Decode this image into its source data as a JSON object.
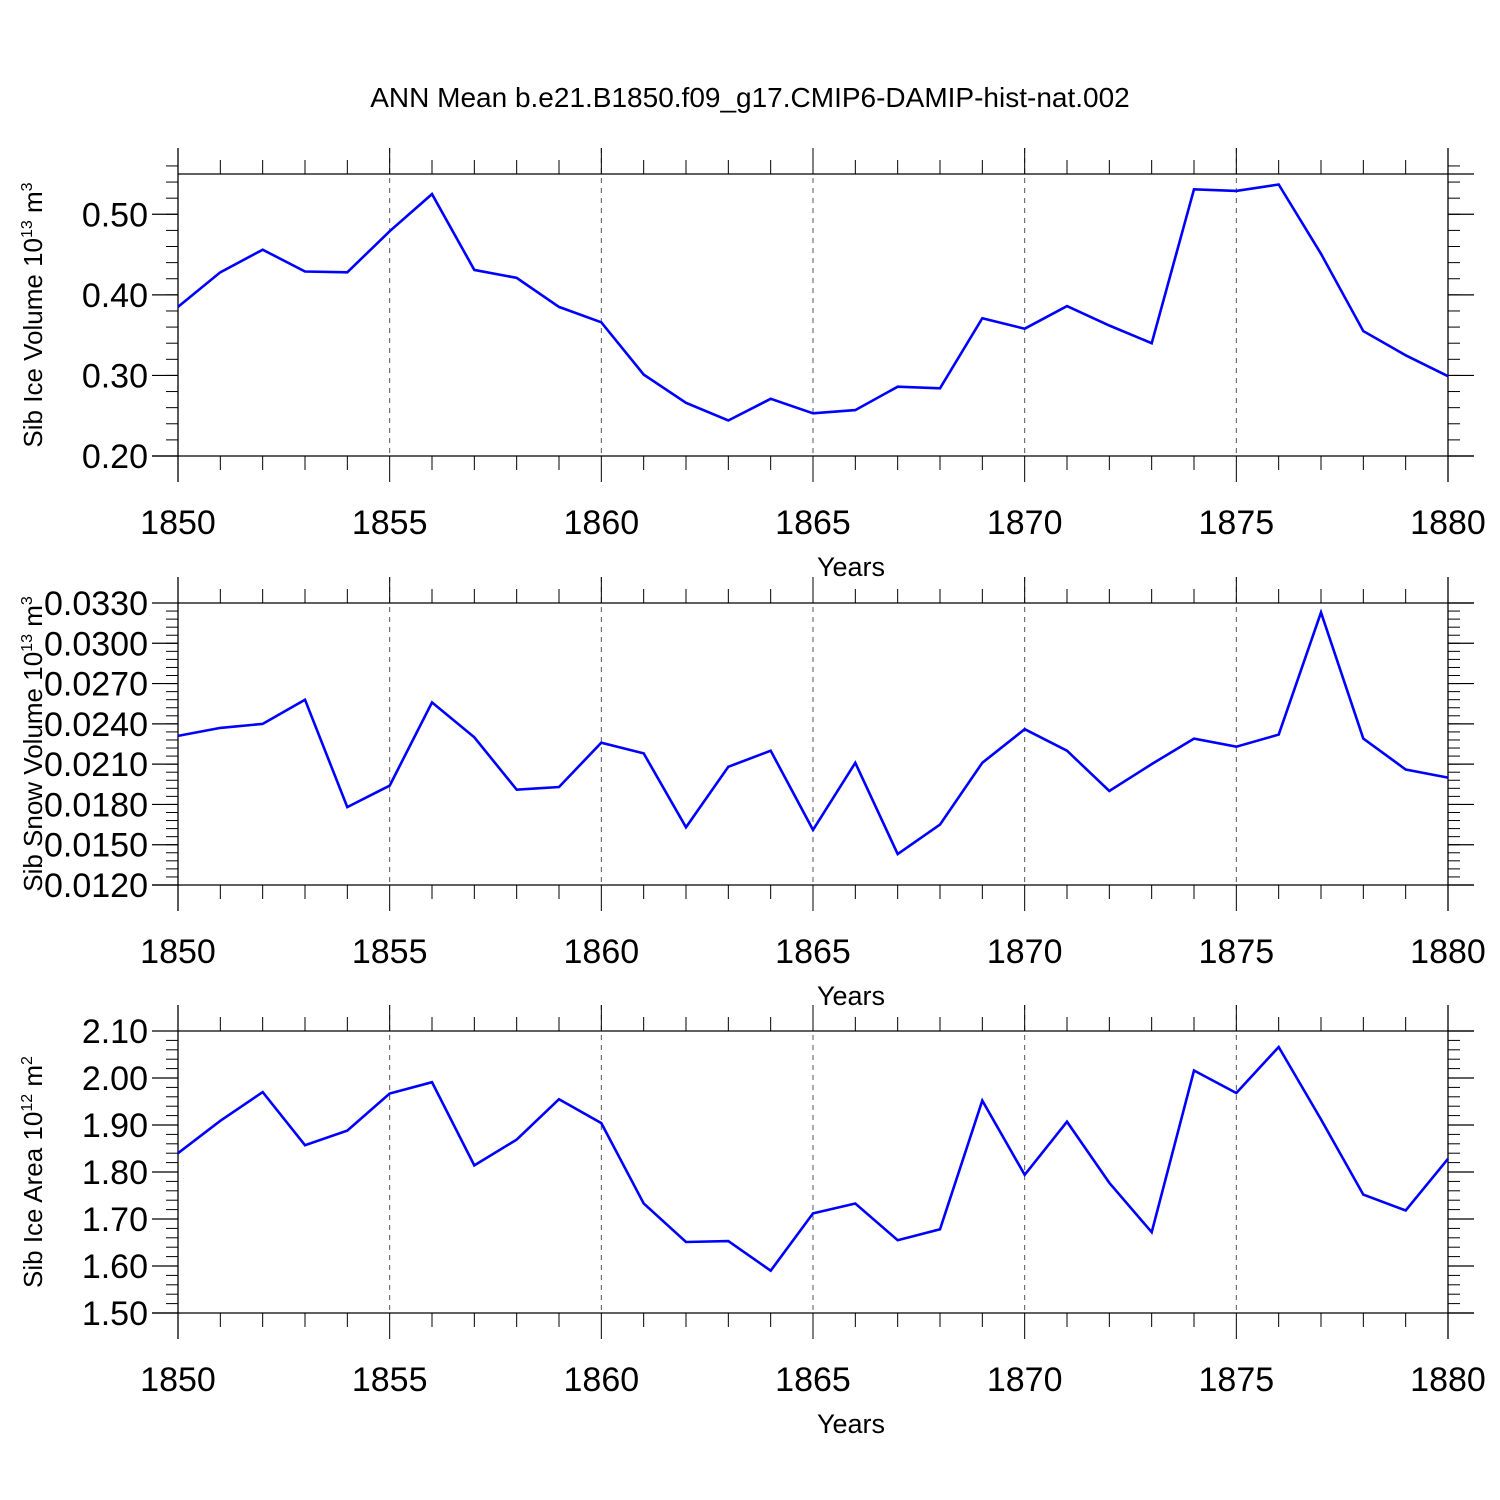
{
  "title": "ANN Mean b.e21.B1850.f09_g17.CMIP6-DAMIP-hist-nat.002",
  "colors": {
    "line": "#0000ff",
    "axis": "#000000",
    "grid": "#555555"
  },
  "chart_data": [
    {
      "type": "line",
      "title": "",
      "xlabel": "Years",
      "ylabel": "Sib Ice Volume 10^13 m^3",
      "ylabel_parts": {
        "base": "Sib Ice Volume 10",
        "exp1": "13",
        "mid": " m",
        "exp2": "3"
      },
      "xlim": [
        1850,
        1880
      ],
      "ylim": [
        0.2,
        0.55
      ],
      "xticks": [
        1850,
        1855,
        1860,
        1865,
        1870,
        1875,
        1880
      ],
      "xtick_labels": [
        "1850",
        "1855",
        "1860",
        "1865",
        "1870",
        "1875",
        "1880"
      ],
      "yticks": [
        0.2,
        0.3,
        0.4,
        0.5
      ],
      "ytick_labels": [
        "0.20",
        "0.30",
        "0.40",
        "0.50"
      ],
      "yminor_step": 0.02,
      "grid": "vertical dashed at major x ticks",
      "x": [
        1850,
        1851,
        1852,
        1853,
        1854,
        1855,
        1856,
        1857,
        1858,
        1859,
        1860,
        1861,
        1862,
        1863,
        1864,
        1865,
        1866,
        1867,
        1868,
        1869,
        1870,
        1871,
        1872,
        1873,
        1874,
        1875,
        1876,
        1877,
        1878,
        1879,
        1880
      ],
      "values": [
        0.385,
        0.428,
        0.456,
        0.429,
        0.428,
        0.479,
        0.525,
        0.431,
        0.421,
        0.385,
        0.366,
        0.301,
        0.266,
        0.244,
        0.271,
        0.253,
        0.257,
        0.286,
        0.284,
        0.371,
        0.358,
        0.386,
        0.362,
        0.34,
        0.531,
        0.529,
        0.537,
        0.451,
        0.355,
        0.325,
        0.299
      ]
    },
    {
      "type": "line",
      "title": "",
      "xlabel": "Years",
      "ylabel": "Sib Snow Volume 10^13 m^3",
      "ylabel_parts": {
        "base": "Sib Snow Volume 10",
        "exp1": "13",
        "mid": " m",
        "exp2": "3"
      },
      "xlim": [
        1850,
        1880
      ],
      "ylim": [
        0.012,
        0.033
      ],
      "xticks": [
        1850,
        1855,
        1860,
        1865,
        1870,
        1875,
        1880
      ],
      "xtick_labels": [
        "1850",
        "1855",
        "1860",
        "1865",
        "1870",
        "1875",
        "1880"
      ],
      "yticks": [
        0.012,
        0.015,
        0.018,
        0.021,
        0.024,
        0.027,
        0.03,
        0.033
      ],
      "ytick_labels": [
        "0.0120",
        "0.0150",
        "0.0180",
        "0.0210",
        "0.0240",
        "0.0270",
        "0.0300",
        "0.0330"
      ],
      "yminor_step": 0.0006,
      "grid": "vertical dashed at major x ticks",
      "x": [
        1850,
        1851,
        1852,
        1853,
        1854,
        1855,
        1856,
        1857,
        1858,
        1859,
        1860,
        1861,
        1862,
        1863,
        1864,
        1865,
        1866,
        1867,
        1868,
        1869,
        1870,
        1871,
        1872,
        1873,
        1874,
        1875,
        1876,
        1877,
        1878,
        1879,
        1880
      ],
      "values": [
        0.0231,
        0.0237,
        0.024,
        0.0258,
        0.0178,
        0.0194,
        0.0256,
        0.023,
        0.0191,
        0.0193,
        0.0226,
        0.0218,
        0.0163,
        0.0208,
        0.022,
        0.0161,
        0.0211,
        0.0143,
        0.0165,
        0.0211,
        0.0236,
        0.022,
        0.019,
        0.021,
        0.0229,
        0.0223,
        0.0232,
        0.0323,
        0.0229,
        0.0206,
        0.02
      ]
    },
    {
      "type": "line",
      "title": "",
      "xlabel": "Years",
      "ylabel": "Sib Ice Area 10^12 m^2",
      "ylabel_parts": {
        "base": "Sib Ice Area 10",
        "exp1": "12",
        "mid": " m",
        "exp2": "2"
      },
      "xlim": [
        1850,
        1880
      ],
      "ylim": [
        1.5,
        2.1
      ],
      "xticks": [
        1850,
        1855,
        1860,
        1865,
        1870,
        1875,
        1880
      ],
      "xtick_labels": [
        "1850",
        "1855",
        "1860",
        "1865",
        "1870",
        "1875",
        "1880"
      ],
      "yticks": [
        1.5,
        1.6,
        1.7,
        1.8,
        1.9,
        2.0,
        2.1
      ],
      "ytick_labels": [
        "1.50",
        "1.60",
        "1.70",
        "1.80",
        "1.90",
        "2.00",
        "2.10"
      ],
      "yminor_step": 0.02,
      "grid": "vertical dashed at major x ticks",
      "x": [
        1850,
        1851,
        1852,
        1853,
        1854,
        1855,
        1856,
        1857,
        1858,
        1859,
        1860,
        1861,
        1862,
        1863,
        1864,
        1865,
        1866,
        1867,
        1868,
        1869,
        1870,
        1871,
        1872,
        1873,
        1874,
        1875,
        1876,
        1877,
        1878,
        1879,
        1880
      ],
      "values": [
        1.84,
        1.909,
        1.97,
        1.857,
        1.888,
        1.967,
        1.991,
        1.814,
        1.869,
        1.955,
        1.904,
        1.733,
        1.651,
        1.653,
        1.59,
        1.712,
        1.733,
        1.655,
        1.678,
        1.952,
        1.794,
        1.907,
        1.777,
        1.672,
        2.016,
        1.968,
        2.066,
        1.912,
        1.752,
        1.718,
        1.828
      ]
    }
  ]
}
